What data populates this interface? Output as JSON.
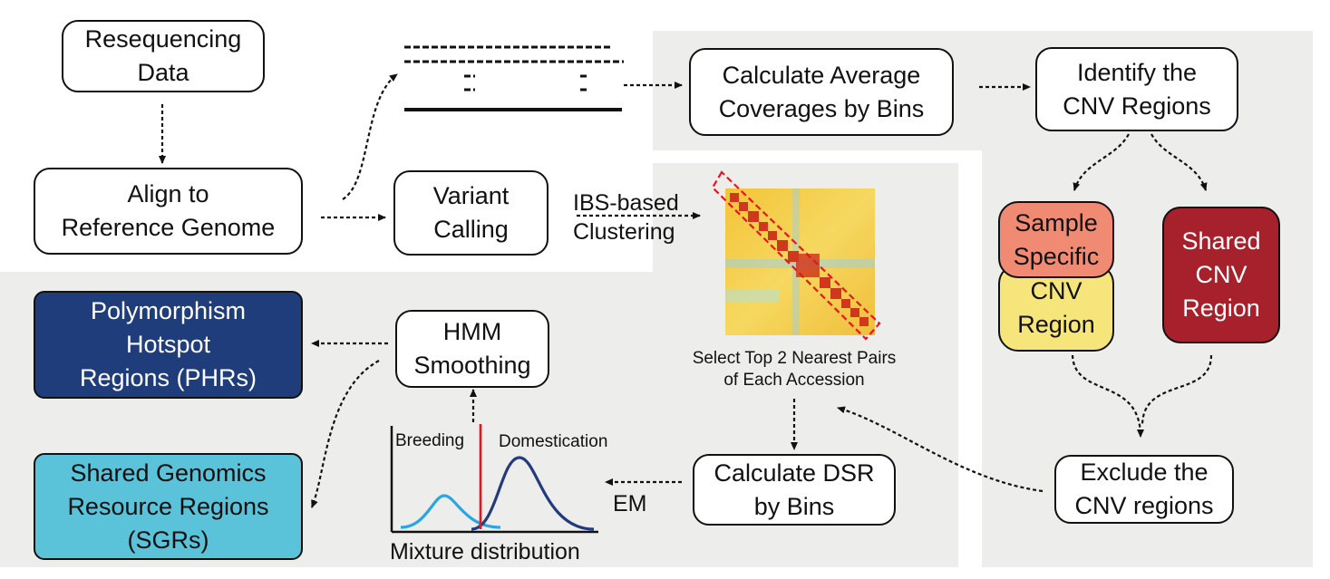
{
  "nodes": {
    "resequencing": "Resequencing\nData",
    "align": "Align to\nReference Genome",
    "variant": "Variant\nCalling",
    "avg_coverage": "Calculate Average\nCoverages by Bins",
    "identify_cnv": "Identify the\nCNV Regions",
    "sample_specific": "Sample\nSpecific",
    "cnv_region": "CNV\nRegion",
    "shared_cnv": "Shared\nCNV\nRegion",
    "exclude_cnv": "Exclude the\nCNV regions",
    "dsr": "Calculate DSR\nby Bins",
    "hmm": "HMM\nSmoothing",
    "phr": "Polymorphism\nHotspot\nRegions (PHRs)",
    "sgr": "Shared Genomics\nResource Regions\n(SGRs)"
  },
  "labels": {
    "ibs": "IBS-based\nClustering",
    "select_pairs": "Select Top 2 Nearest Pairs\nof Each Accession",
    "em": "EM",
    "breeding": "Breeding",
    "domestication": "Domestication",
    "mixture": "Mixture distribution"
  },
  "colors": {
    "background_panel": "#ededeb",
    "sample_specific_fill": "#f08a73",
    "cnv_region_fill": "#f5e57a",
    "shared_cnv_fill": "#a6212b",
    "phr_fill": "#1f3d7a",
    "sgr_fill": "#5ac3d9",
    "highlight": "#e8141e"
  },
  "icons": [
    "read-alignment-icon",
    "ibs-heatmap-icon",
    "mixture-distribution-icon"
  ]
}
